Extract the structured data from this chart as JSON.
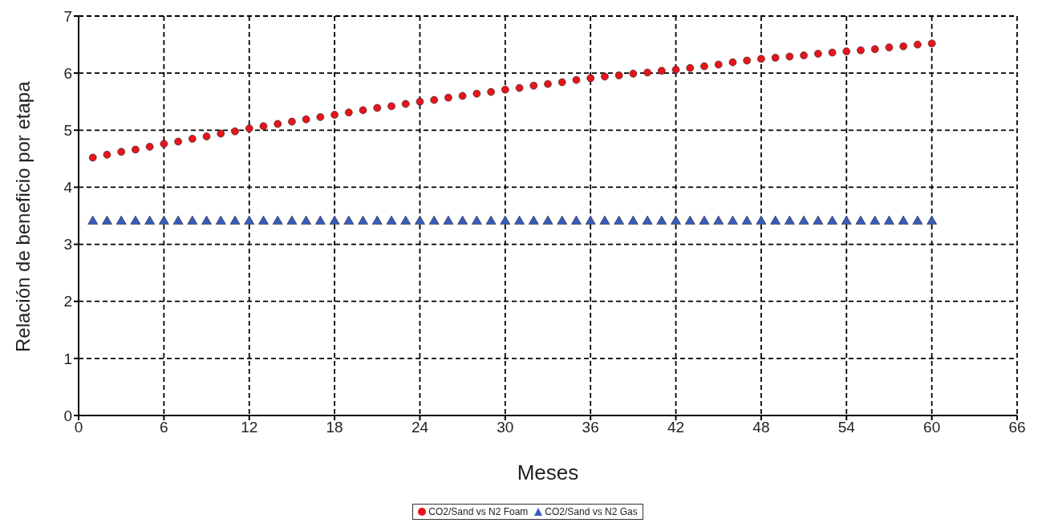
{
  "chart_data": {
    "type": "scatter",
    "xlabel": "Meses",
    "ylabel": "Relación de beneficio por etapa",
    "x": [
      1,
      2,
      3,
      4,
      5,
      6,
      7,
      8,
      9,
      10,
      11,
      12,
      13,
      14,
      15,
      16,
      17,
      18,
      19,
      20,
      21,
      22,
      23,
      24,
      25,
      26,
      27,
      28,
      29,
      30,
      31,
      32,
      33,
      34,
      35,
      36,
      37,
      38,
      39,
      40,
      41,
      42,
      43,
      44,
      45,
      46,
      47,
      48,
      49,
      50,
      51,
      52,
      53,
      54,
      55,
      56,
      57,
      58,
      59,
      60
    ],
    "series": [
      {
        "name": "CO2/Sand vs N2 Foam",
        "color": "#e8141b",
        "marker": "circle",
        "values": [
          4.52,
          4.57,
          4.62,
          4.66,
          4.71,
          4.76,
          4.8,
          4.85,
          4.89,
          4.94,
          4.98,
          5.03,
          5.07,
          5.11,
          5.15,
          5.19,
          5.23,
          5.27,
          5.31,
          5.35,
          5.39,
          5.42,
          5.46,
          5.5,
          5.53,
          5.57,
          5.6,
          5.64,
          5.67,
          5.71,
          5.74,
          5.78,
          5.81,
          5.84,
          5.88,
          5.91,
          5.94,
          5.96,
          5.99,
          6.01,
          6.04,
          6.06,
          6.09,
          6.12,
          6.15,
          6.19,
          6.22,
          6.25,
          6.27,
          6.29,
          6.31,
          6.34,
          6.36,
          6.38,
          6.4,
          6.42,
          6.45,
          6.47,
          6.5,
          6.52
        ]
      },
      {
        "name": "CO2/Sand vs N2 Gas",
        "color": "#3a5bbf",
        "marker": "triangle",
        "values": [
          3.4,
          3.4,
          3.4,
          3.4,
          3.4,
          3.4,
          3.4,
          3.4,
          3.4,
          3.4,
          3.4,
          3.4,
          3.4,
          3.4,
          3.4,
          3.4,
          3.4,
          3.4,
          3.4,
          3.4,
          3.4,
          3.4,
          3.4,
          3.4,
          3.4,
          3.4,
          3.4,
          3.4,
          3.4,
          3.4,
          3.4,
          3.4,
          3.4,
          3.4,
          3.4,
          3.4,
          3.4,
          3.4,
          3.4,
          3.4,
          3.4,
          3.4,
          3.4,
          3.4,
          3.4,
          3.4,
          3.4,
          3.4,
          3.4,
          3.4,
          3.4,
          3.4,
          3.4,
          3.4,
          3.4,
          3.4,
          3.4,
          3.4,
          3.4,
          3.4
        ]
      }
    ],
    "xlim": [
      0,
      66
    ],
    "xticks": [
      0,
      6,
      12,
      18,
      24,
      30,
      36,
      42,
      48,
      54,
      60,
      66
    ],
    "ylim": [
      0,
      7
    ],
    "yticks": [
      0,
      1,
      2,
      3,
      4,
      5,
      6,
      7
    ],
    "grid": true,
    "legend": "bottom"
  }
}
